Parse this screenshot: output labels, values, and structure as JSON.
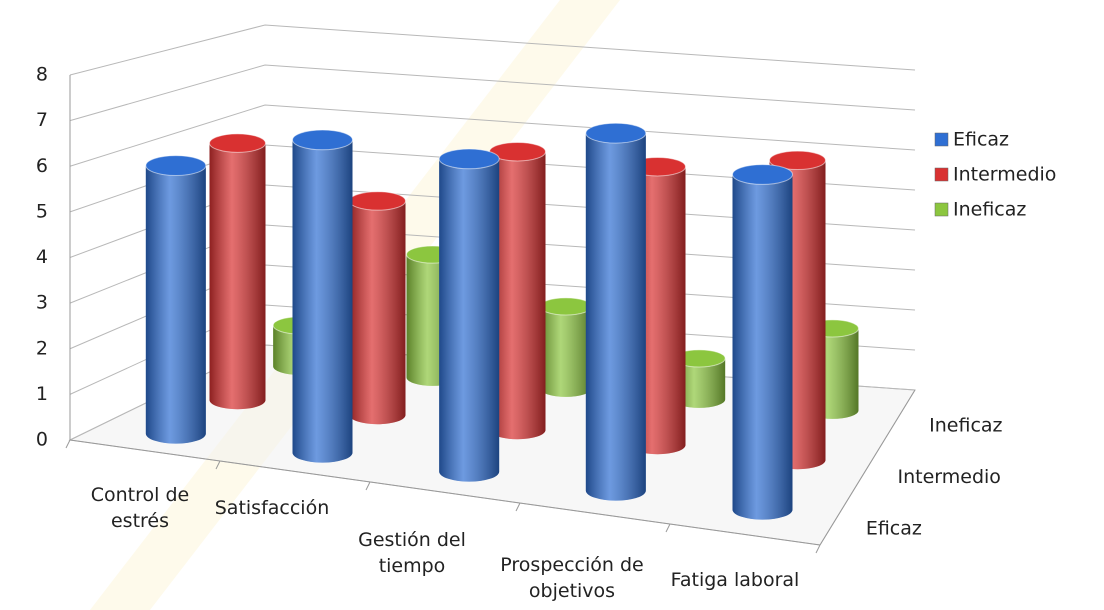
{
  "chart_data": {
    "type": "bar3d",
    "categories": [
      "Control de estrés",
      "Satisfacción",
      "Gestión del tiempo",
      "Prospección de objetivos",
      "Fatiga laboral"
    ],
    "series": [
      {
        "name": "Eficaz",
        "color": "#2f6fd3",
        "values": [
          6,
          7,
          7,
          8,
          7.5
        ]
      },
      {
        "name": "Intermedio",
        "color": "#d93131",
        "values": [
          6,
          5,
          6.5,
          6.5,
          7
        ]
      },
      {
        "name": "Ineficaz",
        "color": "#8cc63f",
        "values": [
          1,
          3,
          2,
          1,
          2
        ]
      }
    ],
    "ylim": [
      0,
      8
    ],
    "yticks": [
      0,
      1,
      2,
      3,
      4,
      5,
      6,
      7,
      8
    ],
    "grid": true,
    "legend": "right"
  }
}
